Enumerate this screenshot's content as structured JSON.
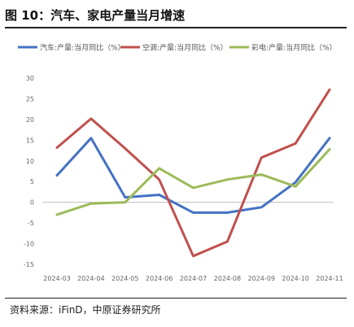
{
  "header": {
    "title": "图 10：汽车、家电产量当月增速"
  },
  "footer": {
    "source": "资料来源：iFinD，中原证券研究所"
  },
  "chart_data": {
    "type": "line",
    "title": "图 10：汽车、家电产量当月增速",
    "xlabel": "",
    "ylabel": "",
    "categories": [
      "2024-03",
      "2024-04",
      "2024-05",
      "2024-06",
      "2024-07",
      "2024-08",
      "2024-09",
      "2024-10",
      "2024-11"
    ],
    "y_ticks": [
      "30",
      "25",
      "20",
      "15",
      "10",
      "5",
      "0",
      "-5",
      "-10",
      "-15"
    ],
    "ylim": [
      -15,
      30
    ],
    "grid": false,
    "legend_position": "top",
    "series": [
      {
        "name": "汽车:产量:当月同比（%）",
        "color": "#4472c4",
        "values": [
          6.5,
          15.5,
          1.2,
          1.8,
          -2.5,
          -2.5,
          -1.2,
          4.8,
          15.5
        ]
      },
      {
        "name": "空调:产量:当月同比（%）",
        "color": "#c0504d",
        "values": [
          13.2,
          20.2,
          13.0,
          5.5,
          -13.0,
          -9.5,
          10.8,
          14.2,
          27.2
        ]
      },
      {
        "name": "彩电:产量:当月同比（%）",
        "color": "#9bbb59",
        "values": [
          -3.0,
          -0.3,
          0.0,
          8.2,
          3.5,
          5.5,
          6.7,
          3.8,
          12.8
        ]
      }
    ]
  }
}
